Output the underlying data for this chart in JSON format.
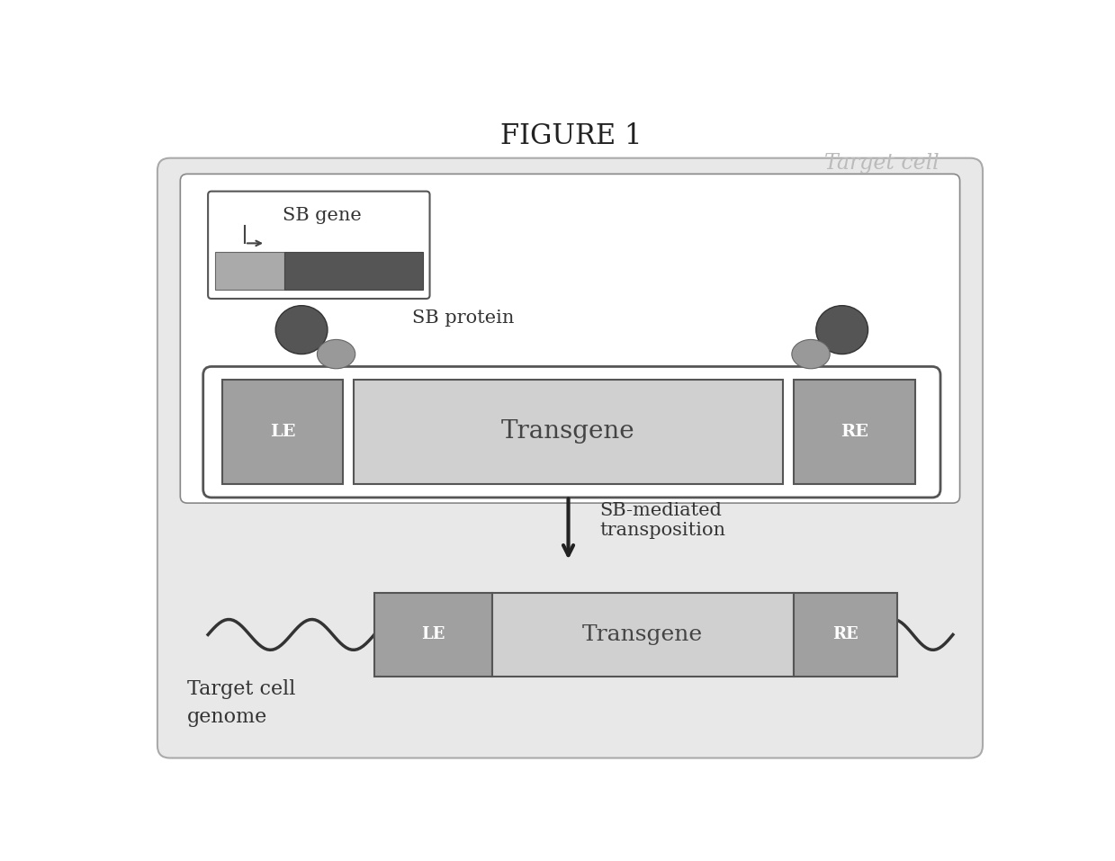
{
  "title": "FIGURE 1",
  "target_cell_label": "Target cell",
  "target_cell_label_color": "#bbbbbb",
  "background_color": "#ffffff",
  "sb_gene_label": "SB gene",
  "sb_protein_label": "SB protein",
  "transgene_label": "Transgene",
  "le_label": "LE",
  "re_label": "RE",
  "arrow_label": "SB-mediated\ntransposition",
  "genome_label": "Target cell\ngenome",
  "transgene_fill": "#d0d0d0",
  "le_re_fill": "#a0a0a0",
  "outer_box_fill": "#e8e8e8",
  "inner_box_fill": "#ffffff",
  "blob_dark": "#555555",
  "blob_light": "#999999",
  "gene_bar_light": "#aaaaaa",
  "gene_bar_dark": "#555555"
}
